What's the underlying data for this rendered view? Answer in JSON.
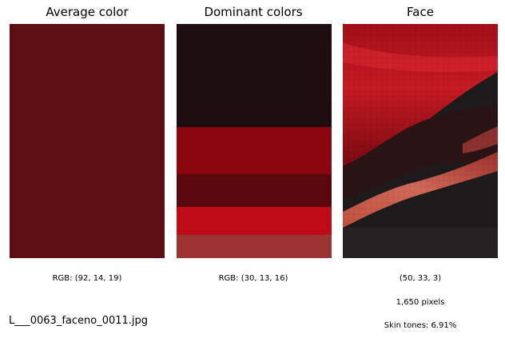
{
  "panels": {
    "average": {
      "title": "Average color",
      "caption": "RGB: (92, 14, 19)",
      "color": "#5c0e13"
    },
    "dominant": {
      "title": "Dominant colors",
      "caption": "RGB: (30, 13, 16)",
      "swatches": [
        {
          "color": "#1e0d10",
          "share": 0.44
        },
        {
          "color": "#8c0610",
          "share": 0.2
        },
        {
          "color": "#5a080e",
          "share": 0.14
        },
        {
          "color": "#bd0c18",
          "share": 0.12
        },
        {
          "color": "#9c3434",
          "share": 0.1
        }
      ]
    },
    "face": {
      "title": "Face",
      "caption_color": "(50, 33, 3)",
      "caption_pixels": "1,650 pixels",
      "caption_skin": "Skin tones: 6.91%"
    }
  },
  "filename": "L___0063_faceno_0011.jpg"
}
